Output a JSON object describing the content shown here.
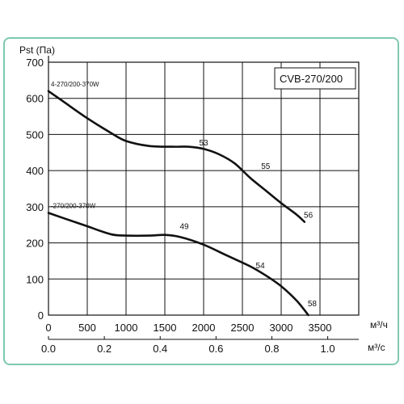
{
  "chart_data": {
    "type": "line",
    "title": "",
    "model_label": "CVB-270/200",
    "ylabel": "Pst (Па)",
    "xlabel_primary": "м³/ч",
    "xlabel_secondary": "м³/с",
    "xlim": [
      0,
      4000
    ],
    "ylim": [
      0,
      700
    ],
    "x_ticks_primary": [
      "0",
      "500",
      "1000",
      "1500",
      "2000",
      "2500",
      "3000",
      "3500"
    ],
    "x_tick_values_primary": [
      0,
      500,
      1000,
      1500,
      2000,
      2500,
      3000,
      3500
    ],
    "x_ticks_secondary": [
      "0.0",
      "0.2",
      "0.4",
      "0.6",
      "0.8",
      "1.0"
    ],
    "x_tick_values_secondary": [
      0,
      720,
      1440,
      2160,
      2880,
      3600
    ],
    "y_ticks": [
      "0",
      "100",
      "200",
      "300",
      "400",
      "500",
      "600",
      "700"
    ],
    "y_tick_values": [
      0,
      100,
      200,
      300,
      400,
      500,
      600,
      700
    ],
    "grid": true,
    "series": [
      {
        "name": "4-270/200-370W",
        "x": [
          0,
          200,
          500,
          800,
          1000,
          1300,
          1600,
          1800,
          2000,
          2200,
          2400,
          2600,
          2800,
          3000,
          3200,
          3300
        ],
        "y": [
          620,
          590,
          545,
          505,
          482,
          468,
          466,
          466,
          460,
          445,
          420,
          380,
          345,
          310,
          278,
          258
        ]
      },
      {
        "name": "-270/200-370W",
        "x": [
          0,
          200,
          500,
          800,
          1000,
          1300,
          1500,
          1700,
          2000,
          2300,
          2600,
          2800,
          3000,
          3200,
          3350
        ],
        "y": [
          283,
          268,
          246,
          224,
          220,
          220,
          222,
          216,
          195,
          165,
          135,
          110,
          80,
          40,
          0
        ]
      }
    ],
    "annotations": [
      {
        "text": "53",
        "x": 2000,
        "y": 470
      },
      {
        "text": "55",
        "x": 2800,
        "y": 405
      },
      {
        "text": "56",
        "x": 3350,
        "y": 270
      },
      {
        "text": "49",
        "x": 1750,
        "y": 238
      },
      {
        "text": "54",
        "x": 2730,
        "y": 130
      },
      {
        "text": "58",
        "x": 3400,
        "y": 25
      }
    ]
  }
}
